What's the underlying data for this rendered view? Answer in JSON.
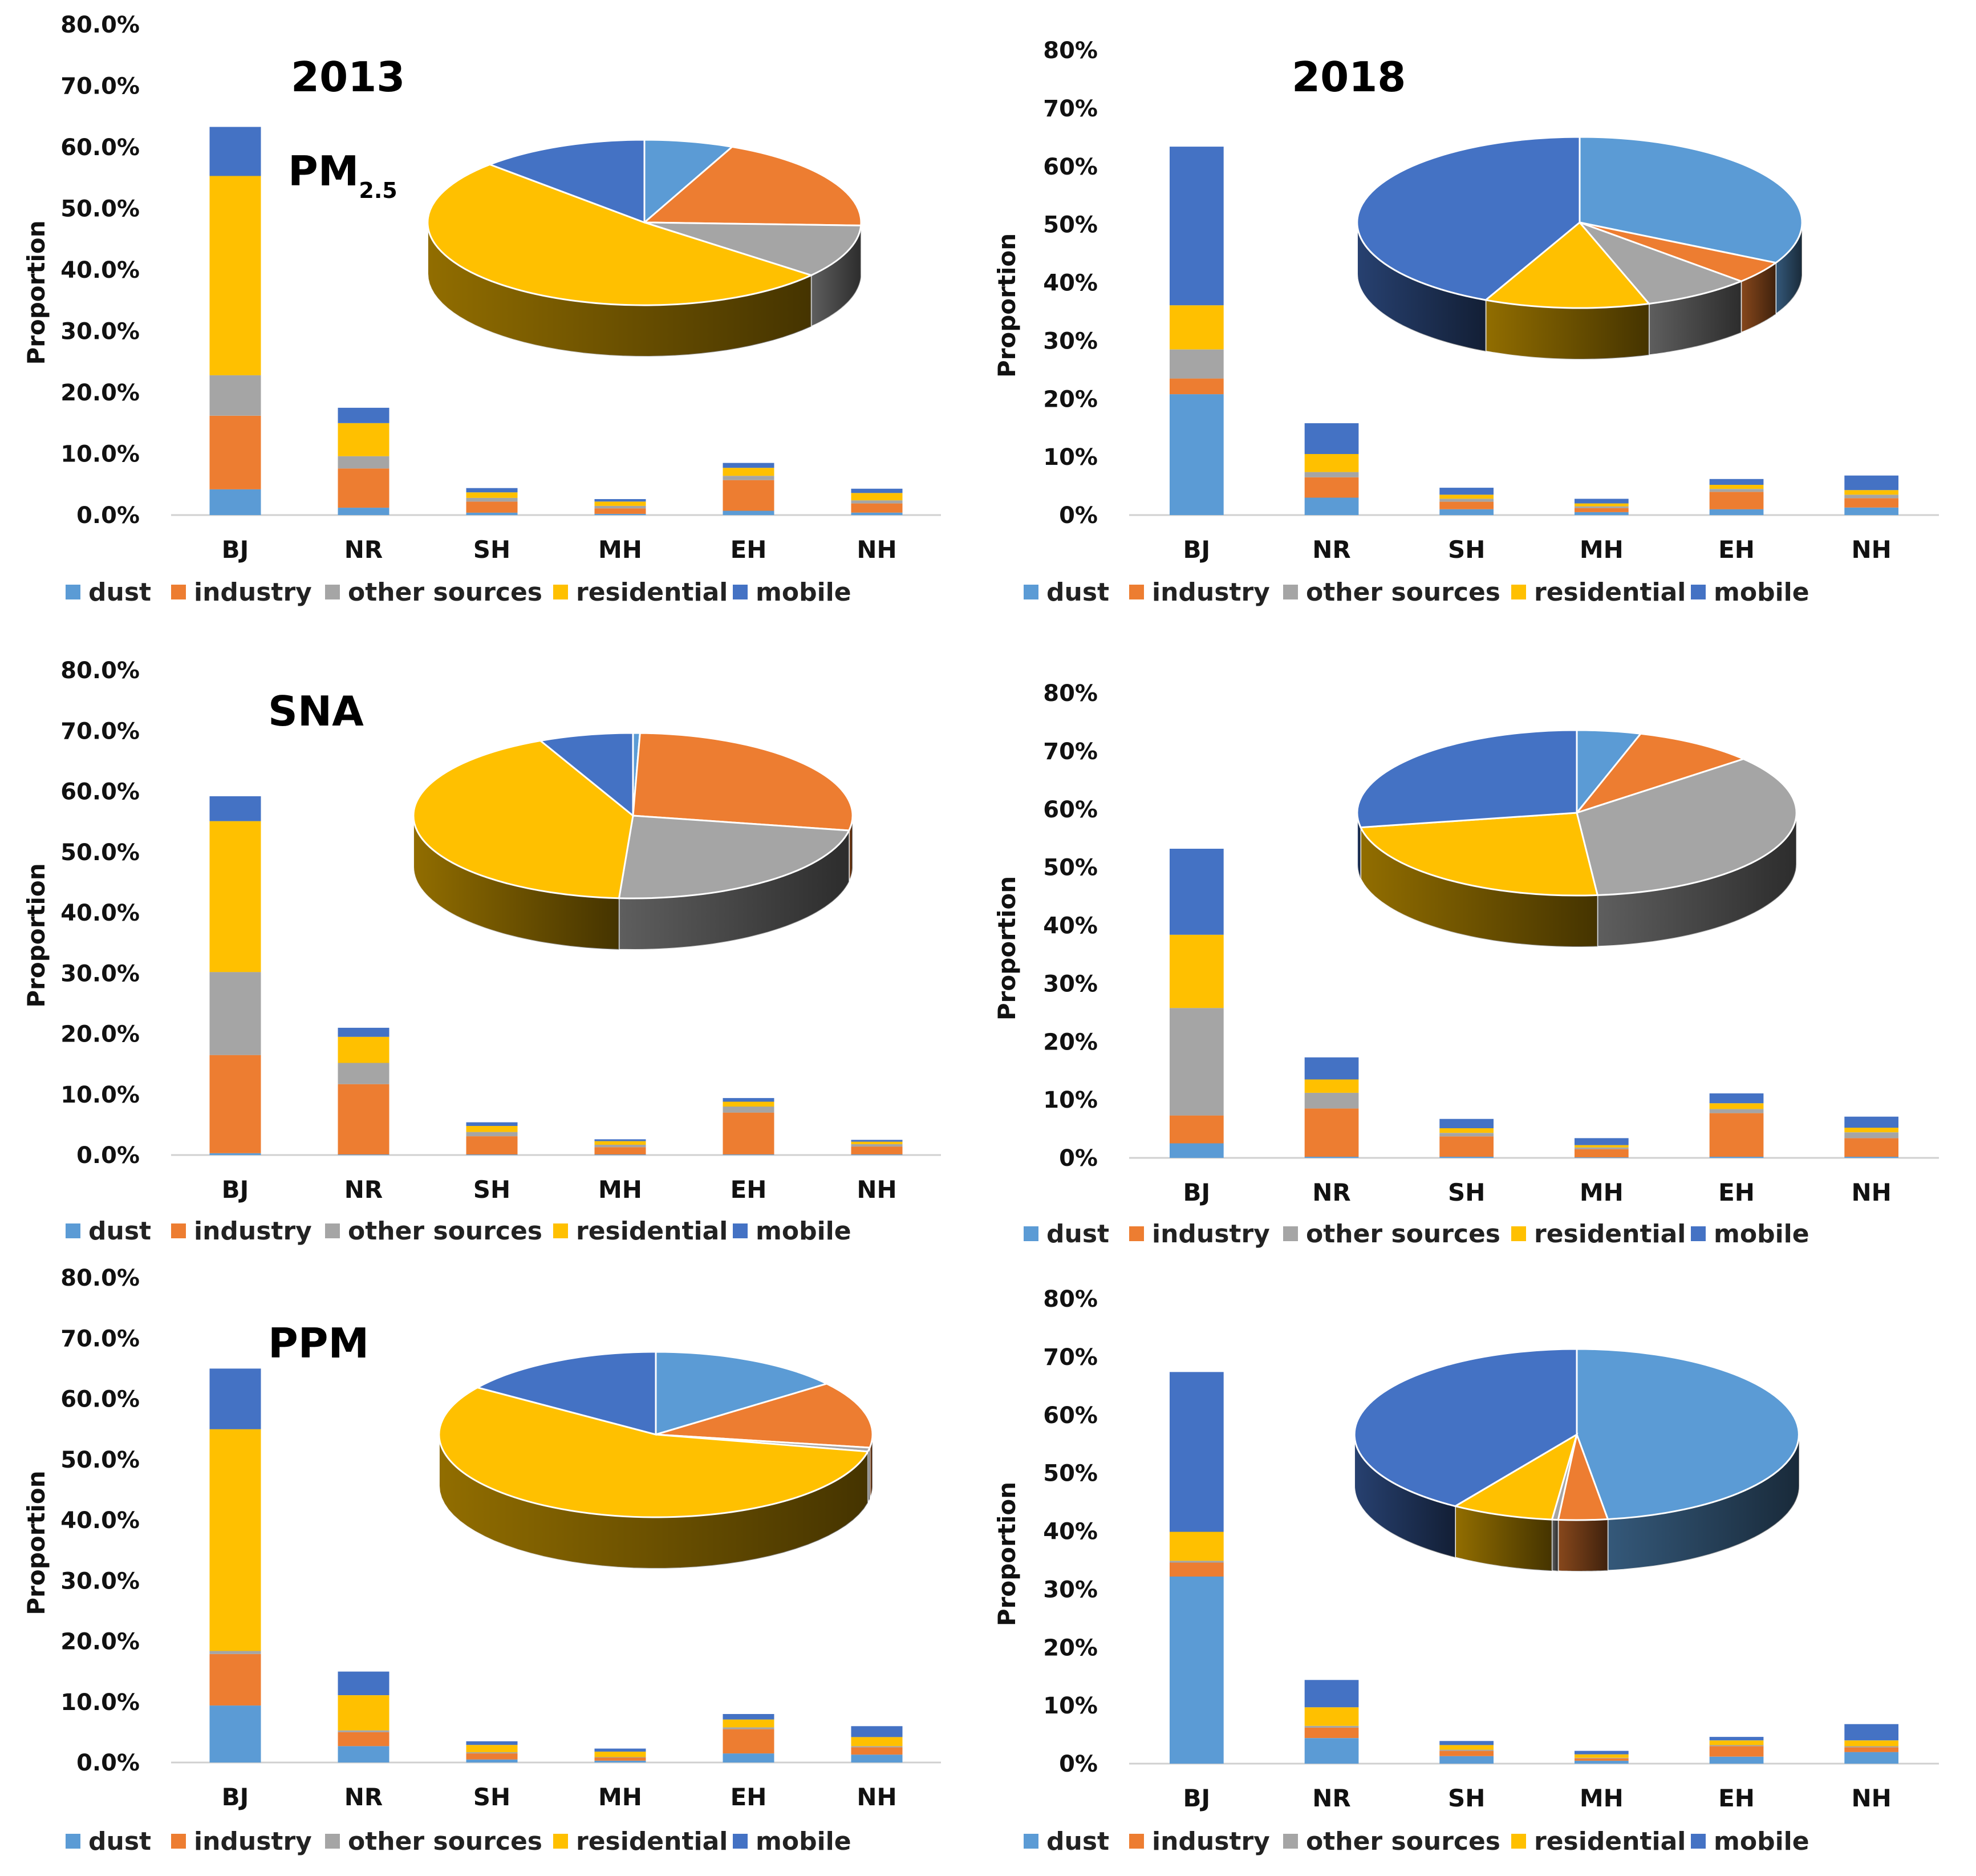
{
  "colors": {
    "dust": "#5B9BD5",
    "industry": "#ED7D31",
    "other sources": "#A5A5A5",
    "residential": "#FFC000",
    "mobile": "#4472C4"
  },
  "chart_data": [
    {
      "type": "bar",
      "stacked": true,
      "title": "2013",
      "subtitle_main": "PM",
      "subtitle_sub": "2.5",
      "ylabel": "Proportion",
      "ylim": [
        0,
        0.8
      ],
      "yticks": [
        "0.0%",
        "10.0%",
        "20.0%",
        "30.0%",
        "40.0%",
        "50.0%",
        "60.0%",
        "70.0%",
        "80.0%"
      ],
      "categories": [
        "BJ",
        "NR",
        "SH",
        "MH",
        "EH",
        "NH"
      ],
      "legend": [
        "dust",
        "industry",
        "other sources",
        "residential",
        "mobile"
      ],
      "series": [
        {
          "name": "dust",
          "values": [
            0.042,
            0.012,
            0.004,
            0.002,
            0.007,
            0.004
          ]
        },
        {
          "name": "industry",
          "values": [
            0.12,
            0.064,
            0.018,
            0.009,
            0.05,
            0.015
          ]
        },
        {
          "name": "other sources",
          "values": [
            0.066,
            0.02,
            0.006,
            0.004,
            0.007,
            0.005
          ]
        },
        {
          "name": "residential",
          "values": [
            0.325,
            0.054,
            0.009,
            0.007,
            0.013,
            0.012
          ]
        },
        {
          "name": "mobile",
          "values": [
            0.08,
            0.025,
            0.007,
            0.004,
            0.008,
            0.007
          ]
        }
      ],
      "pie": {
        "slices": [
          {
            "name": "dust",
            "value": 0.042
          },
          {
            "name": "industry",
            "value": 0.12
          },
          {
            "name": "other sources",
            "value": 0.066
          },
          {
            "name": "residential",
            "value": 0.325
          },
          {
            "name": "mobile",
            "value": 0.08
          }
        ]
      }
    },
    {
      "type": "bar",
      "stacked": true,
      "title": "2018",
      "ylabel": "Proportion",
      "ylim": [
        0,
        0.8
      ],
      "yticks": [
        "0%",
        "10%",
        "20%",
        "30%",
        "40%",
        "50%",
        "60%",
        "70%",
        "80%"
      ],
      "categories": [
        "BJ",
        "NR",
        "SH",
        "MH",
        "EH",
        "NH"
      ],
      "legend": [
        "dust",
        "industry",
        "other sources",
        "residential",
        "mobile"
      ],
      "series": [
        {
          "name": "dust",
          "values": [
            0.208,
            0.03,
            0.01,
            0.005,
            0.01,
            0.013
          ]
        },
        {
          "name": "industry",
          "values": [
            0.027,
            0.035,
            0.013,
            0.007,
            0.03,
            0.016
          ]
        },
        {
          "name": "other sources",
          "values": [
            0.05,
            0.009,
            0.005,
            0.003,
            0.005,
            0.006
          ]
        },
        {
          "name": "residential",
          "values": [
            0.076,
            0.031,
            0.007,
            0.005,
            0.007,
            0.008
          ]
        },
        {
          "name": "mobile",
          "values": [
            0.273,
            0.053,
            0.012,
            0.008,
            0.01,
            0.025
          ]
        }
      ],
      "pie": {
        "slices": [
          {
            "name": "dust",
            "value": 0.208
          },
          {
            "name": "industry",
            "value": 0.027
          },
          {
            "name": "other sources",
            "value": 0.05
          },
          {
            "name": "residential",
            "value": 0.076
          },
          {
            "name": "mobile",
            "value": 0.273
          }
        ]
      }
    },
    {
      "type": "bar",
      "stacked": true,
      "title": "SNA",
      "ylabel": "Proportion",
      "ylim": [
        0,
        0.8
      ],
      "yticks": [
        "0.0%",
        "10.0%",
        "20.0%",
        "30.0%",
        "40.0%",
        "50.0%",
        "60.0%",
        "70.0%",
        "80.0%"
      ],
      "categories": [
        "BJ",
        "NR",
        "SH",
        "MH",
        "EH",
        "NH"
      ],
      "legend": [
        "dust",
        "industry",
        "other sources",
        "residential",
        "mobile"
      ],
      "series": [
        {
          "name": "dust",
          "values": [
            0.003,
            0.001,
            0.001,
            0.001,
            0.001,
            0.001
          ]
        },
        {
          "name": "industry",
          "values": [
            0.162,
            0.116,
            0.03,
            0.012,
            0.069,
            0.013
          ]
        },
        {
          "name": "other sources",
          "values": [
            0.137,
            0.035,
            0.007,
            0.004,
            0.01,
            0.004
          ]
        },
        {
          "name": "residential",
          "values": [
            0.249,
            0.043,
            0.01,
            0.006,
            0.008,
            0.004
          ]
        },
        {
          "name": "mobile",
          "values": [
            0.041,
            0.015,
            0.006,
            0.003,
            0.006,
            0.003
          ]
        }
      ],
      "pie": {
        "slices": [
          {
            "name": "dust",
            "value": 0.003
          },
          {
            "name": "industry",
            "value": 0.162
          },
          {
            "name": "other sources",
            "value": 0.137
          },
          {
            "name": "residential",
            "value": 0.249
          },
          {
            "name": "mobile",
            "value": 0.041
          }
        ]
      }
    },
    {
      "type": "bar",
      "stacked": true,
      "title": "",
      "ylabel": "Proportion",
      "ylim": [
        0,
        0.8
      ],
      "yticks": [
        "0%",
        "10%",
        "20%",
        "30%",
        "40%",
        "50%",
        "60%",
        "70%",
        "80%"
      ],
      "categories": [
        "BJ",
        "NR",
        "SH",
        "MH",
        "EH",
        "NH"
      ],
      "legend": [
        "dust",
        "industry",
        "other sources",
        "residential",
        "mobile"
      ],
      "series": [
        {
          "name": "dust",
          "values": [
            0.025,
            0.002,
            0.002,
            0.001,
            0.002,
            0.002
          ]
        },
        {
          "name": "industry",
          "values": [
            0.048,
            0.083,
            0.035,
            0.014,
            0.075,
            0.032
          ]
        },
        {
          "name": "other sources",
          "values": [
            0.185,
            0.027,
            0.006,
            0.003,
            0.007,
            0.01
          ]
        },
        {
          "name": "residential",
          "values": [
            0.126,
            0.023,
            0.008,
            0.004,
            0.01,
            0.008
          ]
        },
        {
          "name": "mobile",
          "values": [
            0.148,
            0.038,
            0.016,
            0.012,
            0.017,
            0.019
          ]
        }
      ],
      "pie": {
        "slices": [
          {
            "name": "dust",
            "value": 0.025
          },
          {
            "name": "industry",
            "value": 0.048
          },
          {
            "name": "other sources",
            "value": 0.185
          },
          {
            "name": "residential",
            "value": 0.126
          },
          {
            "name": "mobile",
            "value": 0.148
          }
        ]
      }
    },
    {
      "type": "bar",
      "stacked": true,
      "title": "PPM",
      "ylabel": "Proportion",
      "ylim": [
        0,
        0.8
      ],
      "yticks": [
        "0.0%",
        "10.0%",
        "20.0%",
        "30.0%",
        "40.0%",
        "50.0%",
        "60.0%",
        "70.0%",
        "80.0%"
      ],
      "categories": [
        "BJ",
        "NR",
        "SH",
        "MH",
        "EH",
        "NH"
      ],
      "legend": [
        "dust",
        "industry",
        "other sources",
        "residential",
        "mobile"
      ],
      "series": [
        {
          "name": "dust",
          "values": [
            0.094,
            0.027,
            0.005,
            0.003,
            0.015,
            0.013
          ]
        },
        {
          "name": "industry",
          "values": [
            0.085,
            0.023,
            0.01,
            0.005,
            0.04,
            0.012
          ]
        },
        {
          "name": "other sources",
          "values": [
            0.005,
            0.003,
            0.002,
            0.001,
            0.003,
            0.002
          ]
        },
        {
          "name": "residential",
          "values": [
            0.366,
            0.058,
            0.012,
            0.009,
            0.013,
            0.015
          ]
        },
        {
          "name": "mobile",
          "values": [
            0.1,
            0.039,
            0.006,
            0.005,
            0.009,
            0.018
          ]
        }
      ],
      "pie": {
        "slices": [
          {
            "name": "dust",
            "value": 0.094
          },
          {
            "name": "industry",
            "value": 0.085
          },
          {
            "name": "other sources",
            "value": 0.005
          },
          {
            "name": "residential",
            "value": 0.366
          },
          {
            "name": "mobile",
            "value": 0.1
          }
        ]
      }
    },
    {
      "type": "bar",
      "stacked": true,
      "title": "",
      "ylabel": "Proportion",
      "ylim": [
        0,
        0.8
      ],
      "yticks": [
        "0%",
        "10%",
        "20%",
        "30%",
        "40%",
        "50%",
        "60%",
        "70%",
        "80%"
      ],
      "categories": [
        "BJ",
        "NR",
        "SH",
        "MH",
        "EH",
        "NH"
      ],
      "legend": [
        "dust",
        "industry",
        "other sources",
        "residential",
        "mobile"
      ],
      "series": [
        {
          "name": "dust",
          "values": [
            0.322,
            0.044,
            0.013,
            0.005,
            0.012,
            0.02
          ]
        },
        {
          "name": "industry",
          "values": [
            0.024,
            0.018,
            0.009,
            0.004,
            0.018,
            0.008
          ]
        },
        {
          "name": "other sources",
          "values": [
            0.003,
            0.003,
            0.002,
            0.001,
            0.002,
            0.002
          ]
        },
        {
          "name": "residential",
          "values": [
            0.05,
            0.032,
            0.008,
            0.006,
            0.008,
            0.01
          ]
        },
        {
          "name": "mobile",
          "values": [
            0.275,
            0.047,
            0.007,
            0.006,
            0.006,
            0.028
          ]
        }
      ],
      "pie": {
        "slices": [
          {
            "name": "dust",
            "value": 0.322
          },
          {
            "name": "industry",
            "value": 0.024
          },
          {
            "name": "other sources",
            "value": 0.003
          },
          {
            "name": "residential",
            "value": 0.05
          },
          {
            "name": "mobile",
            "value": 0.275
          }
        ]
      }
    }
  ]
}
